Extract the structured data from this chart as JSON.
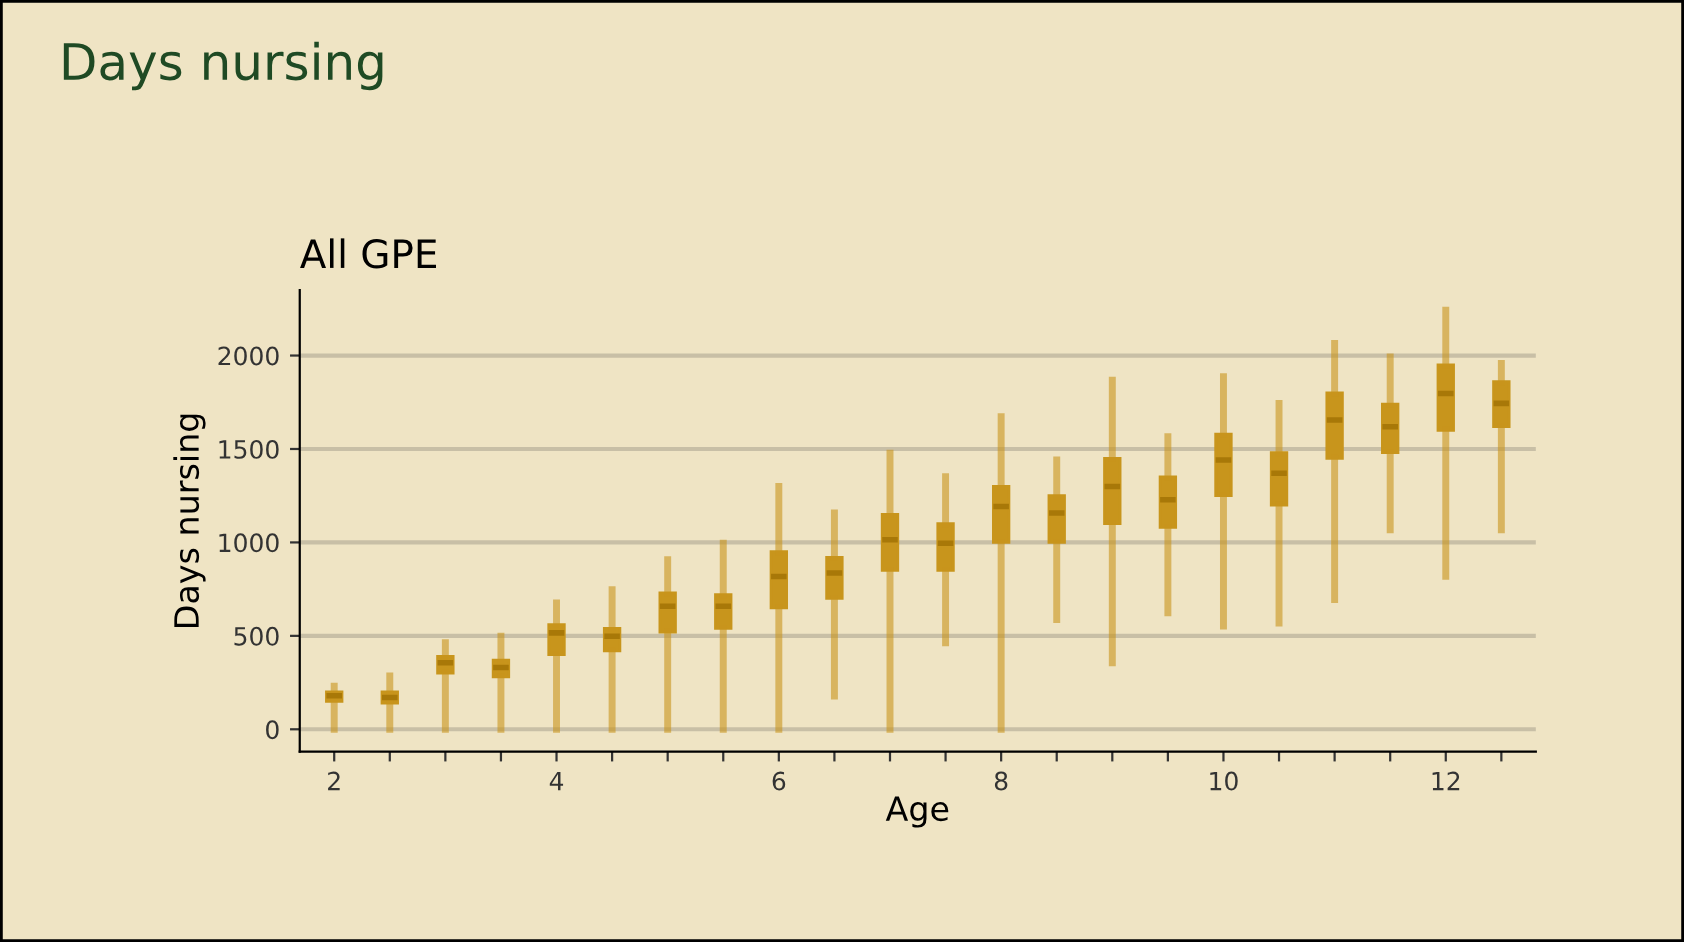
{
  "chart_data": {
    "type": "box",
    "title": "Days nursing",
    "subtitle": "All GPE",
    "xlabel": "Age",
    "ylabel": "Days nursing",
    "x": [
      2,
      2.5,
      3,
      3.5,
      4,
      4.5,
      5,
      5.5,
      6,
      6.5,
      7,
      7.5,
      8,
      8.5,
      9,
      9.5,
      10,
      10.5,
      11,
      11.5,
      12,
      12.5
    ],
    "series": [
      {
        "color": "#c8951c",
        "boxes": [
          {
            "low": 0,
            "q1": 150,
            "median": 180,
            "q3": 200,
            "high": 230
          },
          {
            "low": 0,
            "q1": 140,
            "median": 170,
            "q3": 200,
            "high": 285
          },
          {
            "low": 0,
            "q1": 300,
            "median": 356,
            "q3": 390,
            "high": 463
          },
          {
            "low": 0,
            "q1": 280,
            "median": 331,
            "q3": 370,
            "high": 498
          },
          {
            "low": 0,
            "q1": 400,
            "median": 516,
            "q3": 560,
            "high": 676
          },
          {
            "low": 0,
            "q1": 420,
            "median": 498,
            "q3": 540,
            "high": 747
          },
          {
            "low": 0,
            "q1": 520,
            "median": 658,
            "q3": 730,
            "high": 907
          },
          {
            "low": 0,
            "q1": 540,
            "median": 658,
            "q3": 720,
            "high": 996
          },
          {
            "low": 0,
            "q1": 650,
            "median": 818,
            "q3": 950,
            "high": 1299
          },
          {
            "low": 178,
            "q1": 700,
            "median": 836,
            "q3": 920,
            "high": 1157
          },
          {
            "low": 0,
            "q1": 850,
            "median": 1014,
            "q3": 1150,
            "high": 1477
          },
          {
            "low": 463,
            "q1": 850,
            "median": 996,
            "q3": 1100,
            "high": 1352
          },
          {
            "low": 0,
            "q1": 1000,
            "median": 1192,
            "q3": 1300,
            "high": 1673
          },
          {
            "low": 587,
            "q1": 1000,
            "median": 1157,
            "q3": 1250,
            "high": 1441
          },
          {
            "low": 356,
            "q1": 1100,
            "median": 1299,
            "q3": 1450,
            "high": 1868
          },
          {
            "low": 623,
            "q1": 1080,
            "median": 1228,
            "q3": 1350,
            "high": 1566
          },
          {
            "low": 552,
            "q1": 1250,
            "median": 1441,
            "q3": 1580,
            "high": 1886
          },
          {
            "low": 569,
            "q1": 1200,
            "median": 1370,
            "q3": 1480,
            "high": 1744
          },
          {
            "low": 694,
            "q1": 1450,
            "median": 1655,
            "q3": 1800,
            "high": 2064
          },
          {
            "low": 1068,
            "q1": 1480,
            "median": 1619,
            "q3": 1740,
            "high": 1993
          },
          {
            "low": 819,
            "q1": 1600,
            "median": 1797,
            "q3": 1950,
            "high": 2242
          },
          {
            "low": 1068,
            "q1": 1620,
            "median": 1744,
            "q3": 1860,
            "high": 1957
          }
        ]
      }
    ],
    "xlim": [
      1.69,
      12.81
    ],
    "ylim": [
      -120,
      2350
    ],
    "xticks": [
      2,
      {
        "value": 2.5,
        "label": null
      },
      {
        "value": 3,
        "label": null
      },
      {
        "value": 3.5,
        "label": null
      },
      4,
      {
        "value": 4.5,
        "label": null
      },
      {
        "value": 5,
        "label": null
      },
      {
        "value": 5.5,
        "label": null
      },
      6,
      {
        "value": 6.5,
        "label": null
      },
      {
        "value": 7,
        "label": null
      },
      {
        "value": 7.5,
        "label": null
      },
      8,
      {
        "value": 8.5,
        "label": null
      },
      {
        "value": 9,
        "label": null
      },
      {
        "value": 9.5,
        "label": null
      },
      10,
      {
        "value": 10.5,
        "label": null
      },
      {
        "value": 11,
        "label": null
      },
      {
        "value": 11.5,
        "label": null
      },
      12,
      {
        "value": 12.5,
        "label": null
      }
    ],
    "yticks": [
      0,
      500,
      1000,
      1500,
      2000
    ],
    "grid": "y"
  }
}
